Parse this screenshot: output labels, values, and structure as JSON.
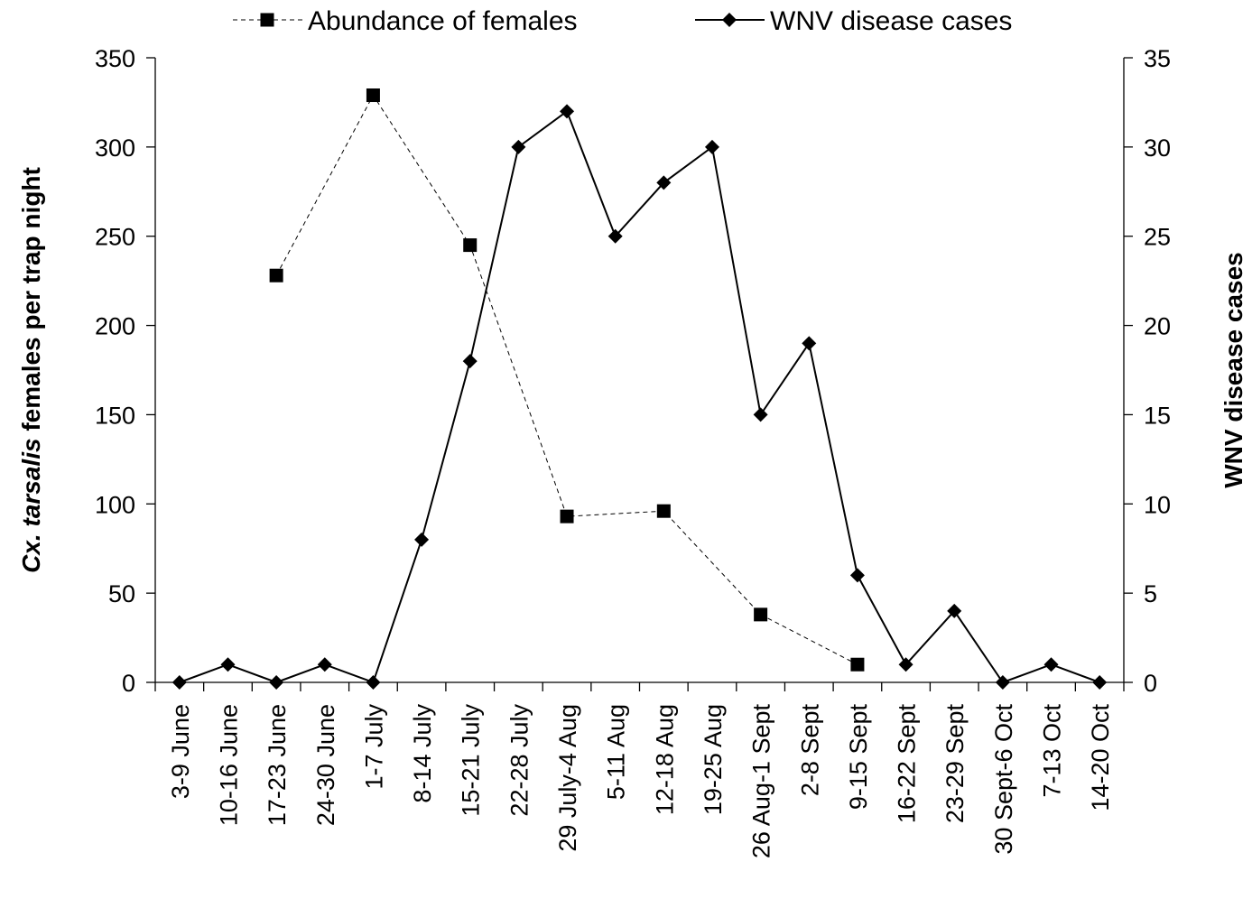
{
  "chart_data": {
    "type": "line",
    "categories": [
      "3-9 June",
      "10-16 June",
      "17-23 June",
      "24-30 June",
      "1-7 July",
      "8-14 July",
      "15-21 July",
      "22-28 July",
      "29 July-4 Aug",
      "5-11 Aug",
      "12-18 Aug",
      "19-25 Aug",
      "26 Aug-1 Sept",
      "2-8 Sept",
      "9-15 Sept",
      "16-22 Sept",
      "23-29 Sept",
      "30 Sept-6 Oct",
      "7-13 Oct",
      "14-20 Oct"
    ],
    "series": [
      {
        "name": "Abundance of females",
        "axis": "left",
        "marker": "square",
        "line_style": "dashed",
        "values": [
          null,
          null,
          228,
          null,
          329,
          null,
          245,
          null,
          93,
          null,
          96,
          null,
          38,
          null,
          10,
          null,
          null,
          null,
          null,
          null
        ]
      },
      {
        "name": "WNV disease cases",
        "axis": "right",
        "marker": "diamond",
        "line_style": "solid",
        "values": [
          0,
          1,
          0,
          1,
          0,
          8,
          18,
          30,
          32,
          25,
          28,
          30,
          15,
          19,
          6,
          1,
          4,
          0,
          1,
          0
        ]
      }
    ],
    "ylabel_left_italic": "Cx. tarsalis",
    "ylabel_left_rest": " females per trap night",
    "ylabel_right": "WNV disease cases",
    "ylim_left": [
      0,
      350
    ],
    "yticks_left": [
      "0",
      "50",
      "100",
      "150",
      "200",
      "250",
      "300",
      "350"
    ],
    "ylim_right": [
      0,
      35
    ],
    "yticks_right": [
      "0",
      "5",
      "10",
      "15",
      "20",
      "25",
      "30",
      "35"
    ],
    "grid": false,
    "legend_position": "top"
  }
}
